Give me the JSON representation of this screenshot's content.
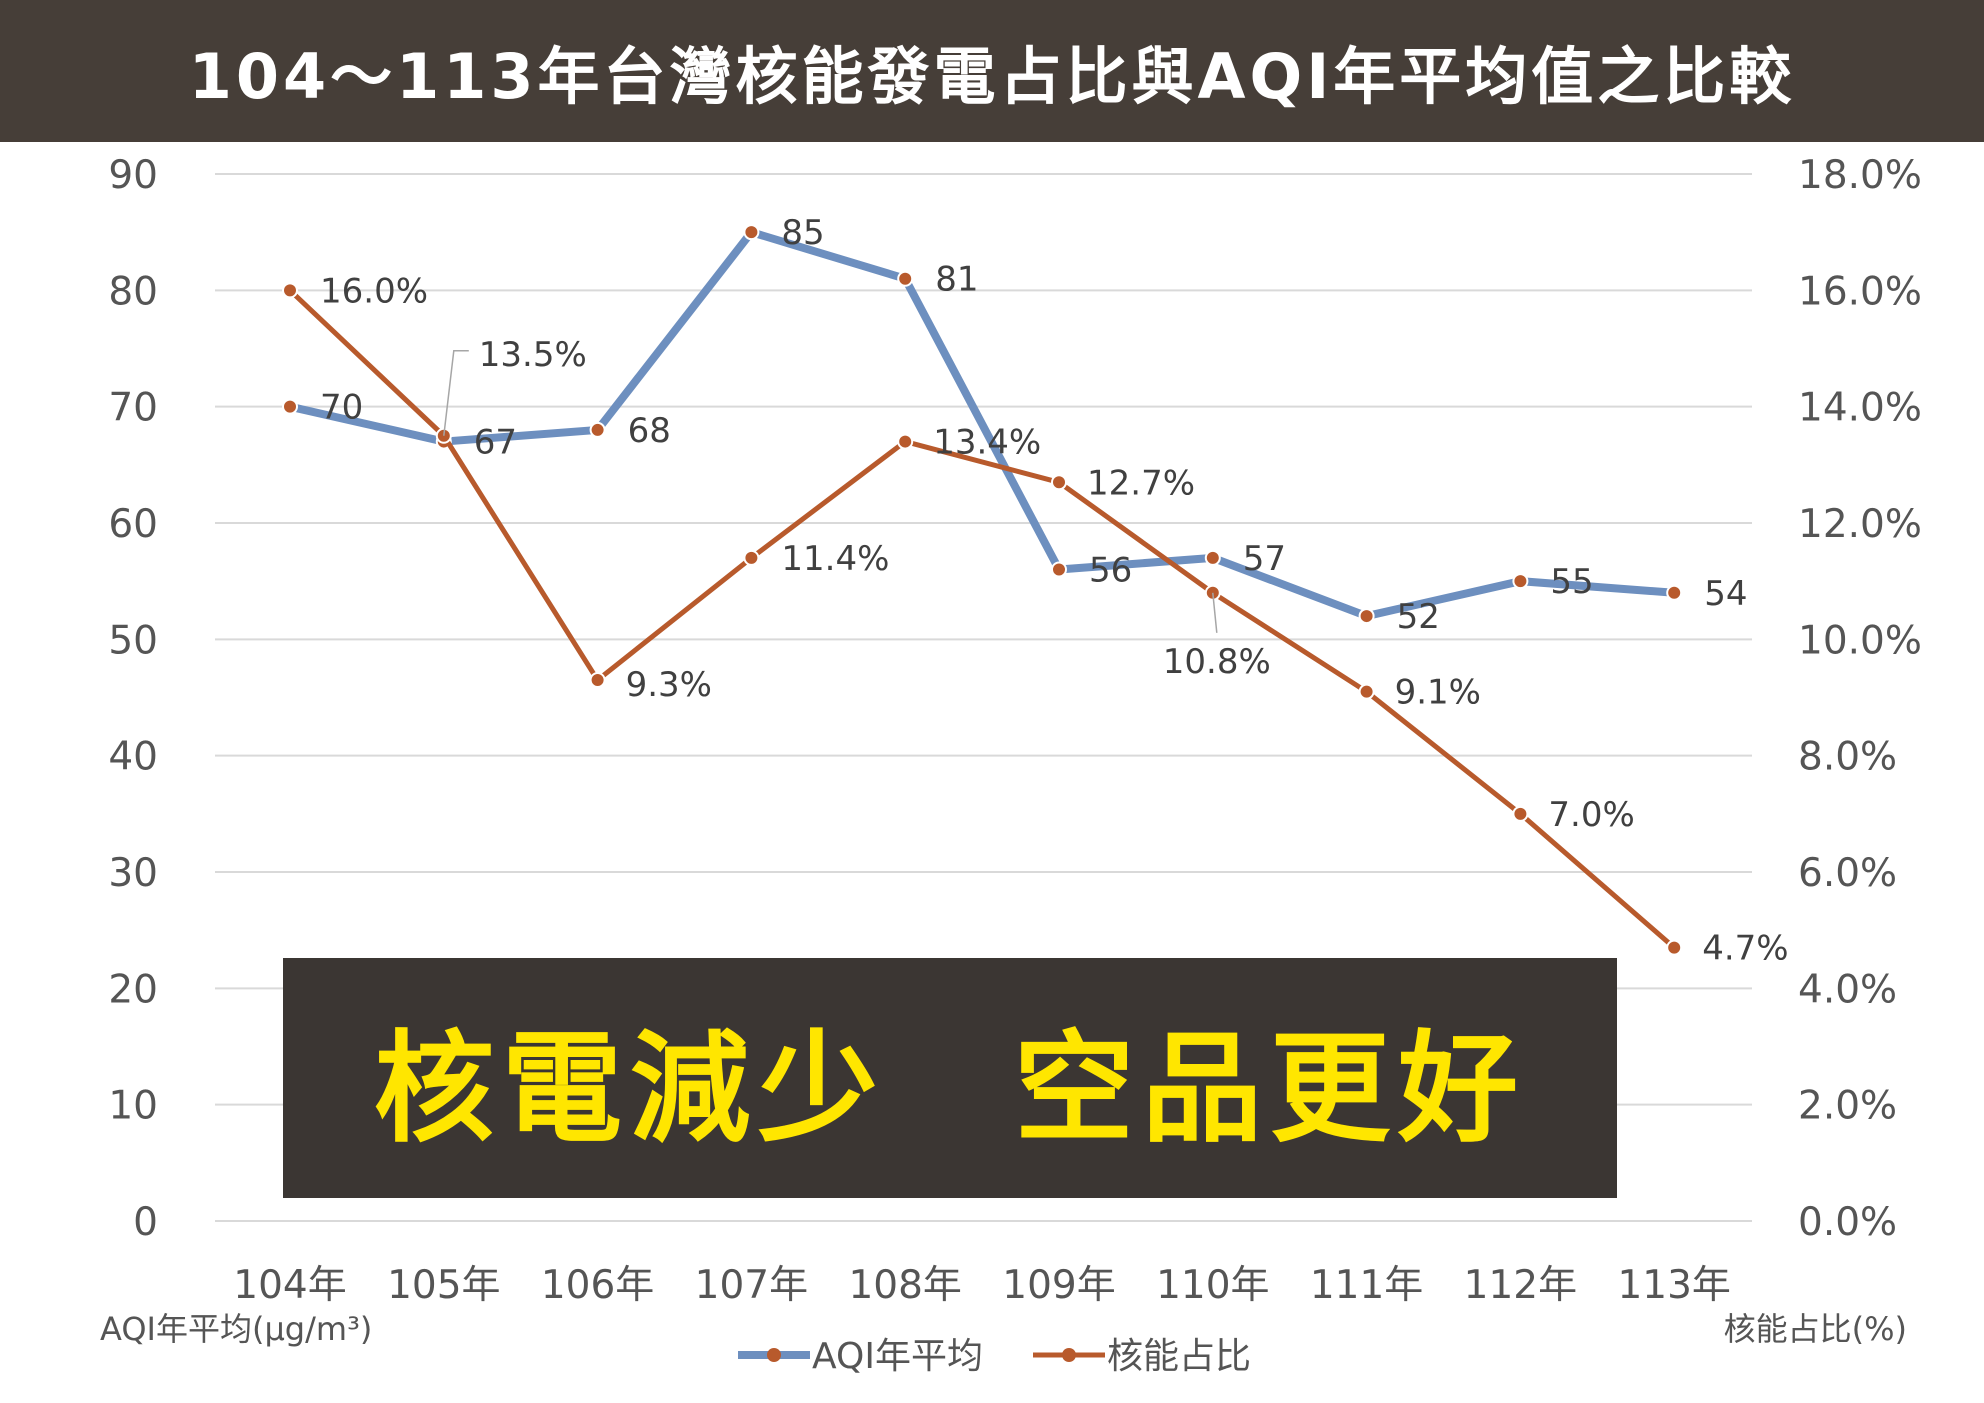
{
  "title": "104～113年台灣核能發電占比與AQI年平均值之比較",
  "banner": "核電減少　空品更好",
  "chart_data": {
    "type": "line",
    "categories": [
      "104年",
      "105年",
      "106年",
      "107年",
      "108年",
      "109年",
      "110年",
      "111年",
      "112年",
      "113年"
    ],
    "y_left": {
      "label": "AQI年平均(μg/m³)",
      "range": [
        0,
        90
      ],
      "ticks": [
        "0",
        "10",
        "20",
        "30",
        "40",
        "50",
        "60",
        "70",
        "80",
        "90"
      ]
    },
    "y_right": {
      "label": "核能占比(%)",
      "range": [
        0,
        18
      ],
      "ticks": [
        "0.0%",
        "2.0%",
        "4.0%",
        "6.0%",
        "8.0%",
        "10.0%",
        "12.0%",
        "14.0%",
        "16.0%",
        "18.0%"
      ]
    },
    "series": [
      {
        "name": "AQI年平均",
        "axis": "left",
        "color": "#6d8fbf",
        "values": [
          70,
          67,
          68,
          85,
          81,
          56,
          57,
          52,
          55,
          54
        ],
        "labels": [
          "70",
          "67",
          "68",
          "85",
          "81",
          "56",
          "57",
          "52",
          "55",
          "54"
        ]
      },
      {
        "name": "核能占比",
        "axis": "right",
        "color": "#b85a2c",
        "values": [
          16.0,
          13.5,
          9.3,
          11.4,
          13.4,
          12.7,
          10.8,
          9.1,
          7.0,
          4.7
        ],
        "labels": [
          "16.0%",
          "13.5%",
          "9.3%",
          "11.4%",
          "13.4%",
          "12.7%",
          "10.8%",
          "9.1%",
          "7.0%",
          "4.7%"
        ]
      }
    ],
    "grid": true,
    "legend_position": "bottom"
  }
}
